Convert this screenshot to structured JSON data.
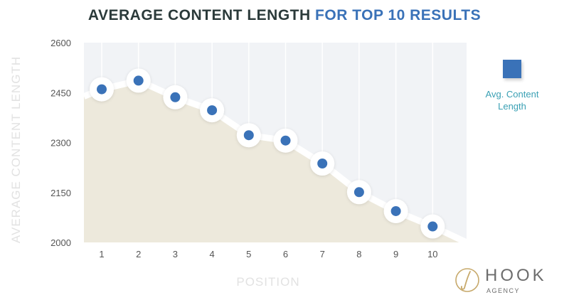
{
  "chart_data": {
    "type": "line",
    "title_part1": "AVERAGE CONTENT LENGTH",
    "title_part2": "FOR TOP 10 RESULTS",
    "x": [
      1,
      2,
      3,
      4,
      5,
      6,
      7,
      8,
      9,
      10
    ],
    "series": [
      {
        "name": "Avg. Content Length",
        "values": [
          2460,
          2486,
          2436,
          2397,
          2322,
          2306,
          2237,
          2151,
          2094,
          2048
        ],
        "color": "#3a72b8"
      }
    ],
    "xlabel": "POSITION",
    "ylabel": "AVERAGE CONTENT LENGTH",
    "xticks": [
      "1",
      "2",
      "3",
      "4",
      "5",
      "6",
      "7",
      "8",
      "9",
      "10"
    ],
    "yticks": [
      2000,
      2150,
      2300,
      2450,
      2600
    ],
    "ylim": [
      2000,
      2600
    ],
    "grid": "vertical",
    "legend_position": "right",
    "colors": {
      "title_dark": "#2b3a3a",
      "title_accent": "#3a72b8",
      "plot_bg": "#f1f3f6",
      "area_fill": "#ede9dc",
      "marker": "#3a72b8",
      "legend_text": "#3aa0b4"
    }
  },
  "legend": {
    "label_line1": "Avg. Content",
    "label_line2": "Length"
  },
  "logo": {
    "word": "HOOK",
    "sub": "AGENCY"
  }
}
